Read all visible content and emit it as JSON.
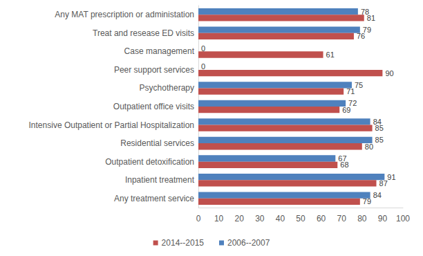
{
  "chart_data": {
    "type": "bar",
    "orientation": "horizontal",
    "categories": [
      "Any treatment service",
      "Inpatient treatment",
      "Outpatient detoxification",
      "Residential services",
      "Intensive Outpatient or Partial Hospitalization",
      "Outpatient office visits",
      "Psychotherapy",
      "Peer support services",
      "Case management",
      "Treat and resease ED visits",
      "Any MAT prescription or administation"
    ],
    "series": [
      {
        "name": "2014--2015",
        "color": "#c0504d",
        "values": [
          79,
          87,
          68,
          80,
          85,
          69,
          71,
          90,
          61,
          76,
          81
        ]
      },
      {
        "name": "2006--2007",
        "color": "#4f81bd",
        "values": [
          84,
          91,
          67,
          85,
          84,
          72,
          75,
          0,
          0,
          79,
          78
        ]
      }
    ],
    "xlim": [
      0,
      100
    ],
    "xticks": [
      0,
      10,
      20,
      30,
      40,
      50,
      60,
      70,
      80,
      90,
      100
    ],
    "grid": false,
    "legend": "bottom",
    "data_labels": true
  }
}
